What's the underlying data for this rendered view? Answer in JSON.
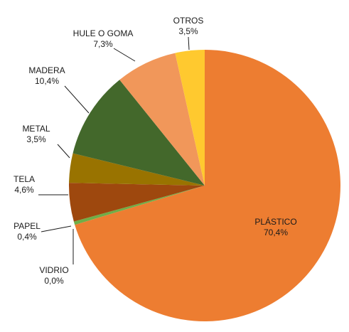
{
  "chart_data": {
    "type": "pie",
    "title": "",
    "start_angle_deg": 0,
    "direction": "clockwise",
    "slices": [
      {
        "label": "PLÁSTICO",
        "value": 70.4,
        "value_label": "70,4%",
        "color": "#ED7D31",
        "label_style": "inside"
      },
      {
        "label": "VIDRIO",
        "value": 0.0,
        "value_label": "0,0%",
        "color": "#6FA845",
        "label_style": "outside"
      },
      {
        "label": "PAPEL",
        "value": 0.4,
        "value_label": "0,4%",
        "color": "#70AD47",
        "label_style": "outside"
      },
      {
        "label": "TELA",
        "value": 4.6,
        "value_label": "4,6%",
        "color": "#9E480E",
        "label_style": "outside"
      },
      {
        "label": "METAL",
        "value": 3.5,
        "value_label": "3,5%",
        "color": "#997300",
        "label_style": "outside"
      },
      {
        "label": "MADERA",
        "value": 10.4,
        "value_label": "10,4%",
        "color": "#43682B",
        "label_style": "outside"
      },
      {
        "label": "HULE O GOMA",
        "value": 7.3,
        "value_label": "7,3%",
        "color": "#F1975A",
        "label_style": "outside"
      },
      {
        "label": "OTROS",
        "value": 3.5,
        "value_label": "3,5%",
        "color": "#FFC92F",
        "label_style": "outside"
      }
    ]
  }
}
